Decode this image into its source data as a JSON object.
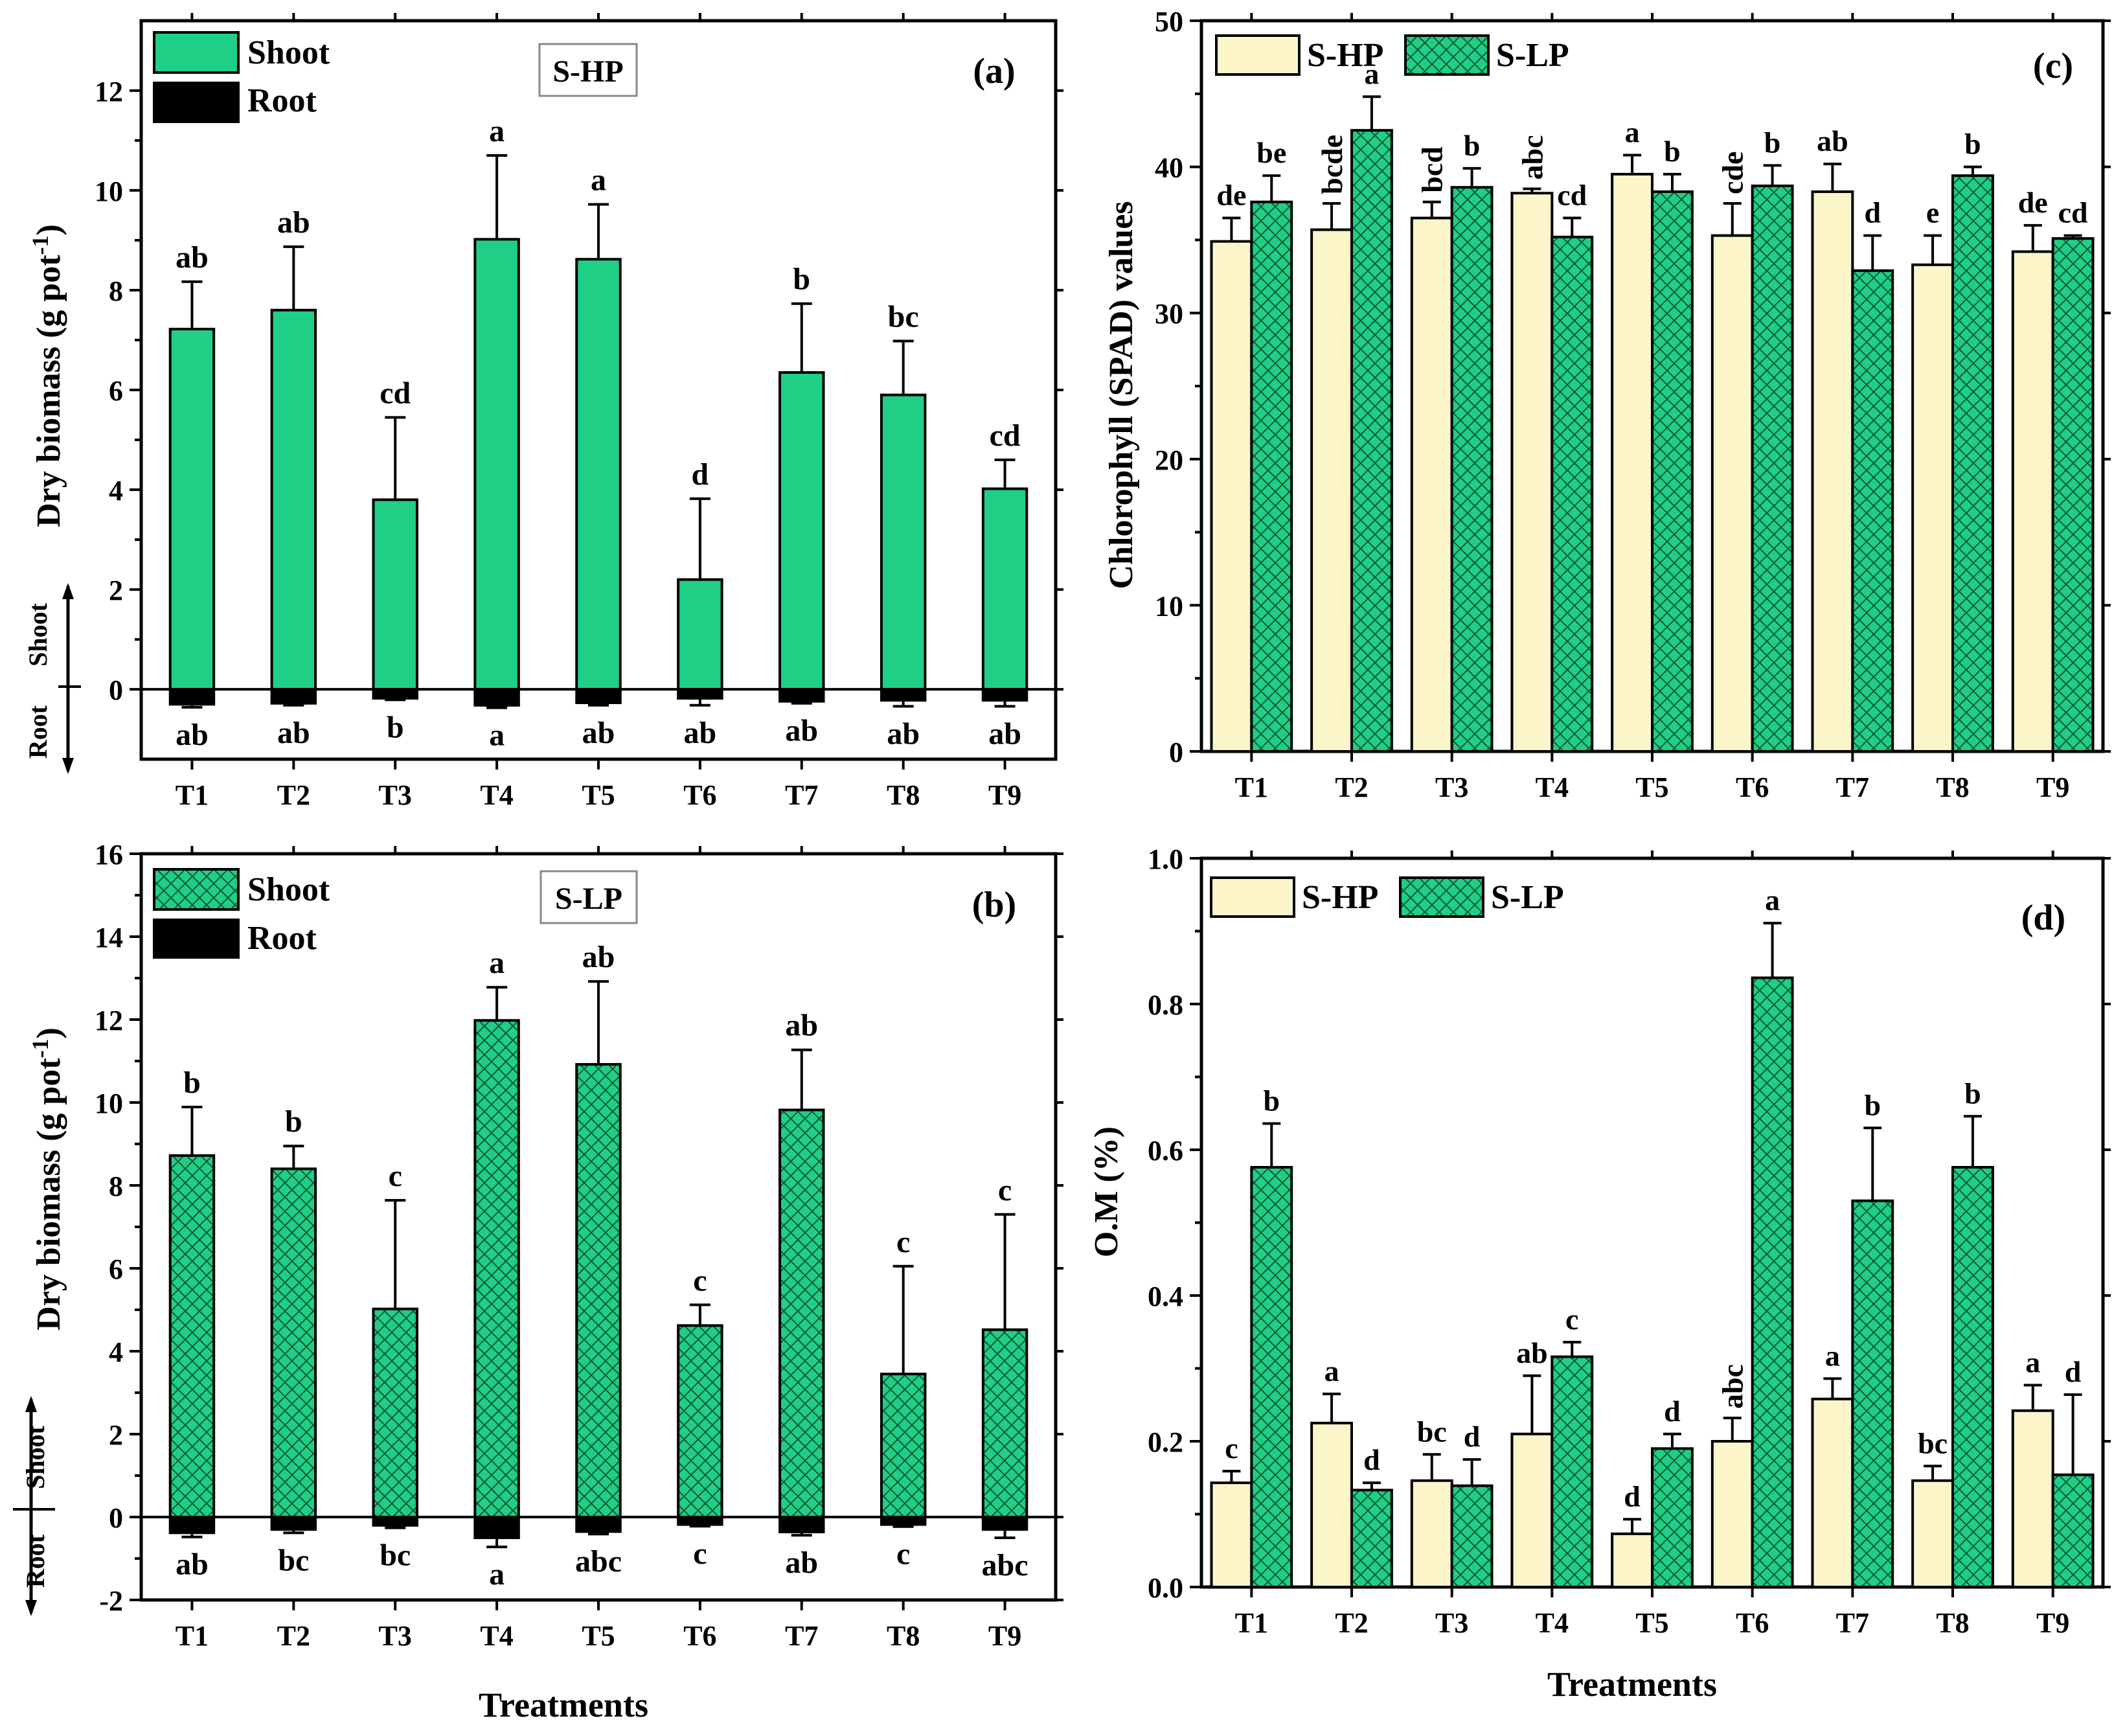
{
  "colors": {
    "shoot_green": "#1fcf86",
    "lp_green": "#1fcf86",
    "hp_cream": "#fbf5c9",
    "root_black": "#000000",
    "hatch": "#0b5a36"
  },
  "shared": {
    "x_axis_label": "Treatments"
  },
  "chart_data": [
    {
      "id": "a",
      "type": "bar",
      "panel_label": "(a)",
      "box_label": "S-HP",
      "title": "",
      "ylabel": "Dry biomass (g pot",
      "ylabel_sup": "-1",
      "ylabel_close": ")",
      "xlabel": "",
      "ylim": [
        -1.4,
        13.4
      ],
      "yticks": [
        0,
        2,
        4,
        6,
        8,
        10,
        12
      ],
      "tick_labels": [
        "0",
        "2",
        "4",
        "6",
        "8",
        "10",
        "12"
      ],
      "categories": [
        "T1",
        "T2",
        "T3",
        "T4",
        "T5",
        "T6",
        "T7",
        "T8",
        "T9"
      ],
      "shoot_arrow_label": "Shoot",
      "root_arrow_label": "Root",
      "legend": [
        "Shoot",
        "Root"
      ],
      "series": [
        {
          "name": "Shoot",
          "style": "solid",
          "values": [
            7.22,
            7.6,
            3.8,
            9.02,
            8.62,
            2.2,
            6.35,
            5.9,
            4.02
          ],
          "errors": [
            0.95,
            1.27,
            1.65,
            1.68,
            1.1,
            1.62,
            1.38,
            1.08,
            0.58
          ],
          "letters": [
            "ab",
            "ab",
            "cd",
            "a",
            "a",
            "d",
            "b",
            "bc",
            "cd"
          ]
        },
        {
          "name": "Root",
          "style": "black",
          "values": [
            -0.3,
            -0.28,
            -0.18,
            -0.32,
            -0.27,
            -0.18,
            -0.24,
            -0.22,
            -0.22
          ],
          "errors": [
            0.06,
            0.04,
            0.03,
            0.05,
            0.05,
            0.14,
            0.04,
            0.12,
            0.12
          ],
          "letters": [
            "ab",
            "ab",
            "b",
            "a",
            "ab",
            "ab",
            "ab",
            "ab",
            "ab"
          ]
        }
      ]
    },
    {
      "id": "b",
      "type": "bar",
      "panel_label": "(b)",
      "box_label": "S-LP",
      "title": "",
      "ylabel": "Dry biomass (g pot",
      "ylabel_sup": "-1",
      "ylabel_close": ")",
      "xlabel": "Treatments",
      "ylim": [
        -2,
        16
      ],
      "yticks": [
        -2,
        0,
        2,
        4,
        6,
        8,
        10,
        12,
        14,
        16
      ],
      "tick_labels": [
        "-2",
        "0",
        "2",
        "4",
        "6",
        "8",
        "10",
        "12",
        "14",
        "16"
      ],
      "categories": [
        "T1",
        "T2",
        "T3",
        "T4",
        "T5",
        "T6",
        "T7",
        "T8",
        "T9"
      ],
      "shoot_arrow_label": "Shoot",
      "root_arrow_label": "Root",
      "legend": [
        "Shoot",
        "Root"
      ],
      "series": [
        {
          "name": "Shoot",
          "style": "hatch",
          "values": [
            8.72,
            8.4,
            5.02,
            11.98,
            10.92,
            4.62,
            9.82,
            3.45,
            4.52
          ],
          "errors": [
            1.17,
            0.55,
            2.62,
            0.8,
            2.0,
            0.5,
            1.45,
            2.6,
            2.78
          ],
          "letters": [
            "b",
            "b",
            "c",
            "a",
            "ab",
            "c",
            "ab",
            "c",
            "c"
          ]
        },
        {
          "name": "Root",
          "style": "black",
          "values": [
            -0.38,
            -0.3,
            -0.2,
            -0.5,
            -0.35,
            -0.18,
            -0.36,
            -0.18,
            -0.3
          ],
          "errors": [
            0.1,
            0.08,
            0.06,
            0.22,
            0.06,
            0.04,
            0.08,
            0.05,
            0.2
          ],
          "letters": [
            "ab",
            "bc",
            "bc",
            "a",
            "abc",
            "c",
            "ab",
            "c",
            "abc"
          ]
        }
      ]
    },
    {
      "id": "c",
      "type": "bar",
      "panel_label": "(c)",
      "title": "",
      "ylabel": "Chlorophyll (SPAD) values",
      "xlabel": "",
      "ylim": [
        0,
        50
      ],
      "yticks": [
        0,
        10,
        20,
        30,
        40,
        50
      ],
      "tick_labels": [
        "0",
        "10",
        "20",
        "30",
        "40",
        "50"
      ],
      "categories": [
        "T1",
        "T2",
        "T3",
        "T4",
        "T5",
        "T6",
        "T7",
        "T8",
        "T9"
      ],
      "legend": [
        "S-HP",
        "S-LP"
      ],
      "series": [
        {
          "name": "S-HP",
          "style": "cream",
          "values": [
            34.9,
            35.7,
            36.5,
            38.2,
            39.5,
            35.3,
            38.3,
            33.3,
            34.2
          ],
          "errors": [
            1.6,
            1.8,
            1.1,
            0.3,
            1.3,
            2.2,
            1.9,
            2.0,
            1.8
          ],
          "letters": [
            "de",
            "bcde",
            "bcd",
            "abc",
            "a",
            "cde",
            "ab",
            "e",
            "de"
          ]
        },
        {
          "name": "S-LP",
          "style": "hatch",
          "values": [
            37.6,
            42.5,
            38.6,
            35.2,
            38.3,
            38.7,
            32.9,
            39.4,
            35.1
          ],
          "errors": [
            1.8,
            2.3,
            1.3,
            1.3,
            1.2,
            1.4,
            2.4,
            0.6,
            0.2
          ],
          "letters": [
            "be",
            "a",
            "b",
            "cd",
            "b",
            "b",
            "d",
            "b",
            "cd"
          ]
        }
      ]
    },
    {
      "id": "d",
      "type": "bar",
      "panel_label": "(d)",
      "title": "",
      "ylabel": "O.M (%)",
      "xlabel": "Treatments",
      "ylim": [
        0,
        1
      ],
      "yticks": [
        0,
        0.2,
        0.4,
        0.6,
        0.8,
        1.0
      ],
      "tick_labels": [
        "0.0",
        "0.2",
        "0.4",
        "0.6",
        "0.8",
        "1.0"
      ],
      "categories": [
        "T1",
        "T2",
        "T3",
        "T4",
        "T5",
        "T6",
        "T7",
        "T8",
        "T9"
      ],
      "legend": [
        "S-HP",
        "S-LP"
      ],
      "series": [
        {
          "name": "S-HP",
          "style": "cream",
          "values": [
            0.143,
            0.225,
            0.146,
            0.21,
            0.073,
            0.2,
            0.258,
            0.146,
            0.242
          ],
          "errors": [
            0.016,
            0.04,
            0.036,
            0.08,
            0.02,
            0.032,
            0.028,
            0.02,
            0.035
          ],
          "letters": [
            "c",
            "a",
            "bc",
            "ab",
            "d",
            "abc",
            "a",
            "bc",
            "a"
          ]
        },
        {
          "name": "S-LP",
          "style": "hatch",
          "values": [
            0.576,
            0.133,
            0.139,
            0.316,
            0.19,
            0.836,
            0.53,
            0.576,
            0.154
          ],
          "errors": [
            0.06,
            0.01,
            0.036,
            0.02,
            0.02,
            0.075,
            0.1,
            0.07,
            0.11
          ],
          "letters": [
            "b",
            "d",
            "d",
            "c",
            "d",
            "a",
            "b",
            "b",
            "d"
          ]
        }
      ]
    }
  ]
}
